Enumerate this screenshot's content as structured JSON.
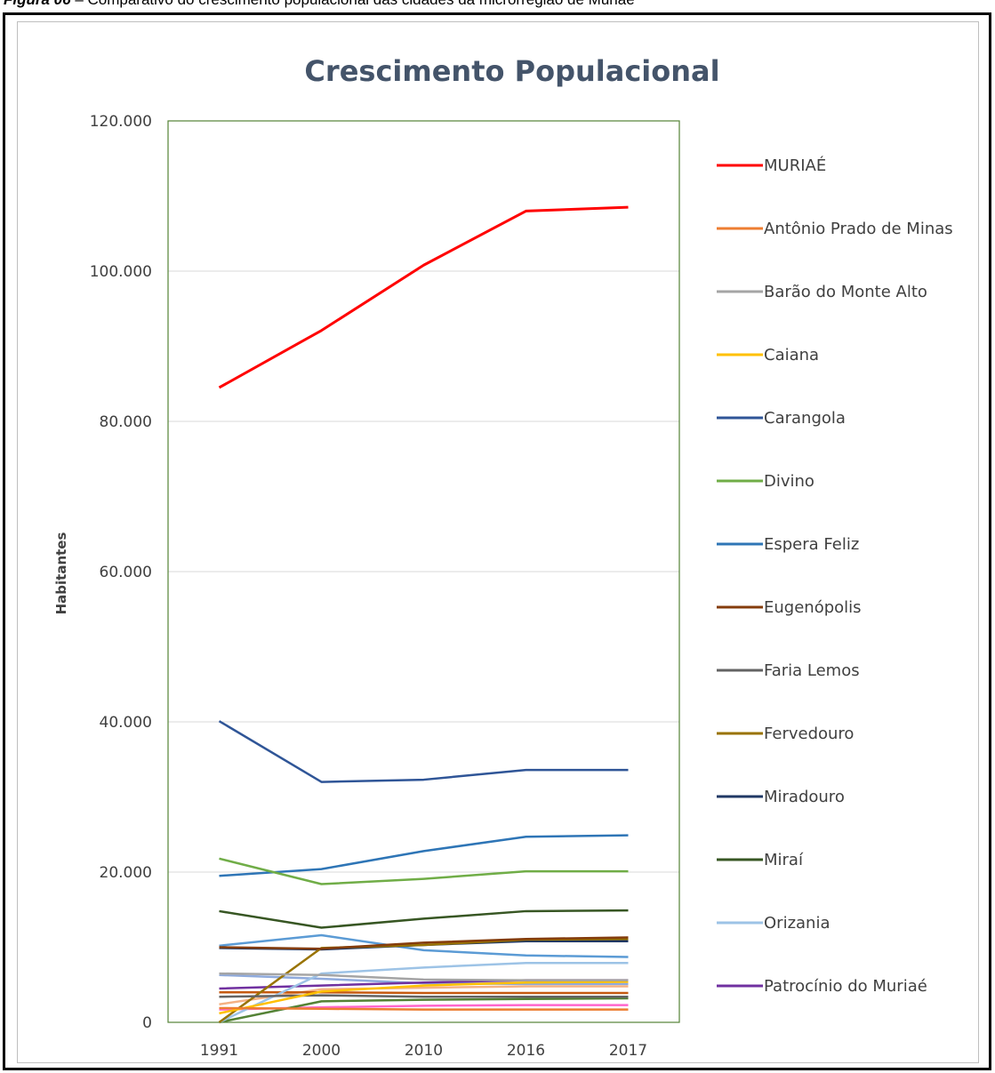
{
  "caption": {
    "prefix": "Figura 06",
    "text": " – Comparativo do crescimento populacional das cidades da microrregião de Muriaé"
  },
  "chart_data": {
    "type": "line",
    "title": "Crescimento Populacional",
    "xlabel": "",
    "ylabel": "Habitantes",
    "categories": [
      "1991",
      "2000",
      "2010",
      "2016",
      "2017"
    ],
    "ylim": [
      0,
      120000
    ],
    "yticks": [
      "0",
      "20.000",
      "40.000",
      "60.000",
      "80.000",
      "100.000",
      "120.000"
    ],
    "grid": true,
    "legend_position": "right",
    "series": [
      {
        "name": "MURIAÉ",
        "color": "#ff0000",
        "values": [
          84500,
          92100,
          100800,
          108000,
          108500
        ],
        "width": 3
      },
      {
        "name": "Antônio Prado de Minas",
        "color": "#ed7d31",
        "values": [
          1900,
          1800,
          1700,
          1700,
          1700
        ]
      },
      {
        "name": "Barão do Monte Alto",
        "color": "#a5a5a5",
        "values": [
          6500,
          6300,
          5700,
          5600,
          5600
        ]
      },
      {
        "name": "Caiana",
        "color": "#ffc000",
        "values": [
          1200,
          4100,
          4900,
          5300,
          5400
        ]
      },
      {
        "name": "Carangola",
        "color": "#2f5597",
        "values": [
          40100,
          32000,
          32300,
          33600,
          33600
        ]
      },
      {
        "name": "Divino",
        "color": "#70ad47",
        "values": [
          21800,
          18400,
          19100,
          20100,
          20100
        ]
      },
      {
        "name": "Espera Feliz",
        "color": "#2e75b6",
        "values": [
          19500,
          20400,
          22800,
          24700,
          24900
        ]
      },
      {
        "name": "Eugenópolis",
        "color": "#843c0c",
        "values": [
          10000,
          9800,
          10600,
          11100,
          11300
        ]
      },
      {
        "name": "Faria Lemos",
        "color": "#636363",
        "values": [
          3400,
          3600,
          3400,
          3400,
          3400
        ]
      },
      {
        "name": "Fervedouro",
        "color": "#997300",
        "values": [
          0,
          9900,
          10300,
          11000,
          11100
        ]
      },
      {
        "name": "Miradouro",
        "color": "#203864",
        "values": [
          9900,
          9700,
          10300,
          10800,
          10800
        ]
      },
      {
        "name": "Miraí",
        "color": "#375623",
        "values": [
          14800,
          12600,
          13800,
          14800,
          14900
        ]
      },
      {
        "name": "Orizania",
        "color": "#9dc3e6",
        "values": [
          0,
          6500,
          7300,
          7900,
          7900
        ]
      },
      {
        "name": "Patrocínio do Muriaé",
        "color": "#7030a0",
        "values": [
          4500,
          4900,
          5300,
          5600,
          5600
        ]
      },
      {
        "name": "",
        "color": "#5b9bd5",
        "values": [
          10200,
          11600,
          9600,
          8900,
          8700
        ]
      },
      {
        "name": "",
        "color": "#c55a11",
        "values": [
          4000,
          4000,
          3900,
          3900,
          3900
        ]
      },
      {
        "name": "",
        "color": "#548235",
        "values": [
          0,
          2800,
          3000,
          3100,
          3200
        ]
      },
      {
        "name": "",
        "color": "#ff66cc",
        "values": [
          1700,
          2000,
          2200,
          2300,
          2300
        ]
      },
      {
        "name": "",
        "color": "#f4b183",
        "values": [
          2400,
          4400,
          4600,
          4800,
          4800
        ]
      },
      {
        "name": "",
        "color": "#8faadc",
        "values": [
          6300,
          5800,
          5200,
          5100,
          5100
        ]
      }
    ]
  }
}
